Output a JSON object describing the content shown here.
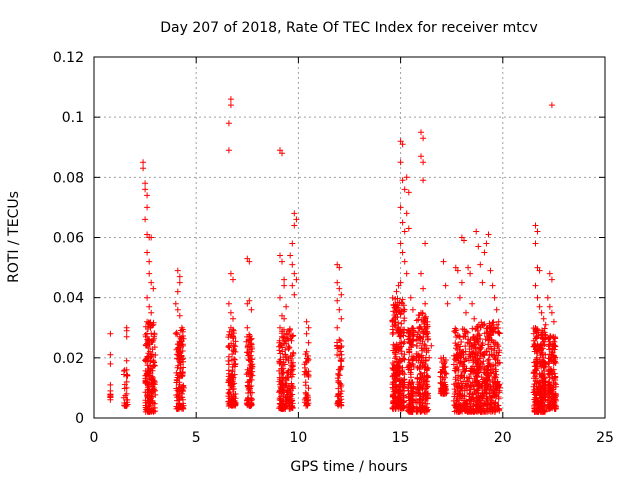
{
  "chart_data": {
    "type": "scatter",
    "title": "Day 207 of 2018, Rate Of TEC Index for receiver mtcv",
    "xlabel": "GPS time / hours",
    "ylabel": "ROTI / TECUs",
    "xlim": [
      0,
      25
    ],
    "ylim": [
      0,
      0.12
    ],
    "xticks": [
      "0",
      "5",
      "10",
      "15",
      "20",
      "25"
    ],
    "yticks": [
      "0",
      "0.02",
      "0.04",
      "0.06",
      "0.08",
      "0.1",
      "0.12"
    ],
    "grid": true,
    "marker": "+",
    "color": "#ff0000",
    "series": [
      {
        "points": [
          [
            0.8,
            0.028
          ],
          [
            0.8,
            0.021
          ],
          [
            0.8,
            0.018
          ],
          [
            0.8,
            0.011
          ],
          [
            0.8,
            0.009
          ],
          [
            0.8,
            0.007
          ],
          [
            1.6,
            0.03
          ],
          [
            1.6,
            0.029
          ],
          [
            1.6,
            0.027
          ],
          [
            1.6,
            0.019
          ],
          [
            1.6,
            0.016
          ],
          [
            1.6,
            0.014
          ],
          [
            1.6,
            0.012
          ],
          [
            1.6,
            0.01
          ],
          [
            1.6,
            0.008
          ],
          [
            1.6,
            0.006
          ],
          [
            1.6,
            0.004
          ],
          [
            2.4,
            0.085
          ],
          [
            2.4,
            0.083
          ],
          [
            2.5,
            0.078
          ],
          [
            2.5,
            0.076
          ],
          [
            2.6,
            0.074
          ],
          [
            2.6,
            0.07
          ],
          [
            2.5,
            0.066
          ],
          [
            2.6,
            0.061
          ],
          [
            2.7,
            0.06
          ],
          [
            2.8,
            0.06
          ],
          [
            2.6,
            0.055
          ],
          [
            2.7,
            0.052
          ],
          [
            2.7,
            0.048
          ],
          [
            2.8,
            0.045
          ],
          [
            2.9,
            0.043
          ],
          [
            2.6,
            0.04
          ],
          [
            2.7,
            0.037
          ],
          [
            2.8,
            0.035
          ],
          [
            2.6,
            0.032
          ],
          [
            2.9,
            0.031
          ],
          [
            2.8,
            0.028
          ],
          [
            2.7,
            0.026
          ],
          [
            2.6,
            0.024
          ],
          [
            4.1,
            0.049
          ],
          [
            4.2,
            0.047
          ],
          [
            4.2,
            0.045
          ],
          [
            4.1,
            0.042
          ],
          [
            4.0,
            0.038
          ],
          [
            4.1,
            0.036
          ],
          [
            4.2,
            0.034
          ],
          [
            4.3,
            0.03
          ],
          [
            4.0,
            0.028
          ],
          [
            4.2,
            0.025
          ],
          [
            4.4,
            0.01
          ],
          [
            6.7,
            0.106
          ],
          [
            6.7,
            0.104
          ],
          [
            6.6,
            0.098
          ],
          [
            6.6,
            0.089
          ],
          [
            6.7,
            0.048
          ],
          [
            6.8,
            0.046
          ],
          [
            6.6,
            0.038
          ],
          [
            6.7,
            0.035
          ],
          [
            6.8,
            0.033
          ],
          [
            6.7,
            0.03
          ],
          [
            6.8,
            0.027
          ],
          [
            6.6,
            0.024
          ],
          [
            7.5,
            0.053
          ],
          [
            7.6,
            0.052
          ],
          [
            7.6,
            0.039
          ],
          [
            7.5,
            0.038
          ],
          [
            7.7,
            0.036
          ],
          [
            7.5,
            0.03
          ],
          [
            7.6,
            0.026
          ],
          [
            7.7,
            0.022
          ],
          [
            9.1,
            0.089
          ],
          [
            9.2,
            0.088
          ],
          [
            9.1,
            0.054
          ],
          [
            9.2,
            0.052
          ],
          [
            9.3,
            0.046
          ],
          [
            9.3,
            0.044
          ],
          [
            9.1,
            0.04
          ],
          [
            9.4,
            0.037
          ],
          [
            9.2,
            0.034
          ],
          [
            9.3,
            0.033
          ],
          [
            9.1,
            0.03
          ],
          [
            9.2,
            0.027
          ],
          [
            9.5,
            0.026
          ],
          [
            9.8,
            0.068
          ],
          [
            9.9,
            0.066
          ],
          [
            9.8,
            0.064
          ],
          [
            9.7,
            0.058
          ],
          [
            9.6,
            0.054
          ],
          [
            9.7,
            0.051
          ],
          [
            9.8,
            0.048
          ],
          [
            9.9,
            0.046
          ],
          [
            9.7,
            0.044
          ],
          [
            9.8,
            0.041
          ],
          [
            10.4,
            0.032
          ],
          [
            10.5,
            0.03
          ],
          [
            10.4,
            0.028
          ],
          [
            10.5,
            0.025
          ],
          [
            10.4,
            0.022
          ],
          [
            11.9,
            0.051
          ],
          [
            12.0,
            0.05
          ],
          [
            11.9,
            0.045
          ],
          [
            12.0,
            0.043
          ],
          [
            12.1,
            0.041
          ],
          [
            11.9,
            0.039
          ],
          [
            12.0,
            0.036
          ],
          [
            12.1,
            0.033
          ],
          [
            11.9,
            0.03
          ],
          [
            12.0,
            0.026
          ],
          [
            14.6,
            0.032
          ],
          [
            14.7,
            0.031
          ],
          [
            14.8,
            0.042
          ],
          [
            14.9,
            0.044
          ],
          [
            15.0,
            0.092
          ],
          [
            15.1,
            0.091
          ],
          [
            15.0,
            0.085
          ],
          [
            15.1,
            0.079
          ],
          [
            15.2,
            0.076
          ],
          [
            15.0,
            0.07
          ],
          [
            15.1,
            0.065
          ],
          [
            15.2,
            0.062
          ],
          [
            15.0,
            0.058
          ],
          [
            15.1,
            0.055
          ],
          [
            15.2,
            0.052
          ],
          [
            15.3,
            0.048
          ],
          [
            15.0,
            0.045
          ],
          [
            15.3,
            0.08
          ],
          [
            15.4,
            0.075
          ],
          [
            15.3,
            0.068
          ],
          [
            15.4,
            0.063
          ],
          [
            15.5,
            0.04
          ],
          [
            15.6,
            0.036
          ],
          [
            16.0,
            0.095
          ],
          [
            16.1,
            0.093
          ],
          [
            16.0,
            0.087
          ],
          [
            16.1,
            0.085
          ],
          [
            16.1,
            0.079
          ],
          [
            16.2,
            0.058
          ],
          [
            16.0,
            0.048
          ],
          [
            16.1,
            0.043
          ],
          [
            16.2,
            0.038
          ],
          [
            16.0,
            0.035
          ],
          [
            16.3,
            0.031
          ],
          [
            16.5,
            0.024
          ],
          [
            16.4,
            0.02
          ],
          [
            17.1,
            0.052
          ],
          [
            17.2,
            0.044
          ],
          [
            17.3,
            0.038
          ],
          [
            17.1,
            0.02
          ],
          [
            17.2,
            0.017
          ],
          [
            17.7,
            0.05
          ],
          [
            17.8,
            0.049
          ],
          [
            18.0,
            0.06
          ],
          [
            18.1,
            0.059
          ],
          [
            18.0,
            0.045
          ],
          [
            17.9,
            0.04
          ],
          [
            18.2,
            0.035
          ],
          [
            18.3,
            0.05
          ],
          [
            18.4,
            0.048
          ],
          [
            18.5,
            0.038
          ],
          [
            18.6,
            0.033
          ],
          [
            18.7,
            0.062
          ],
          [
            18.8,
            0.057
          ],
          [
            18.9,
            0.051
          ],
          [
            19.0,
            0.045
          ],
          [
            19.1,
            0.055
          ],
          [
            19.2,
            0.058
          ],
          [
            19.3,
            0.061
          ],
          [
            19.4,
            0.049
          ],
          [
            19.5,
            0.044
          ],
          [
            19.6,
            0.04
          ],
          [
            19.7,
            0.036
          ],
          [
            19.8,
            0.032
          ],
          [
            21.6,
            0.064
          ],
          [
            21.7,
            0.062
          ],
          [
            21.6,
            0.058
          ],
          [
            21.7,
            0.05
          ],
          [
            21.8,
            0.049
          ],
          [
            21.6,
            0.044
          ],
          [
            21.7,
            0.04
          ],
          [
            21.8,
            0.037
          ],
          [
            21.9,
            0.035
          ],
          [
            22.0,
            0.033
          ],
          [
            22.1,
            0.031
          ],
          [
            22.3,
            0.048
          ],
          [
            22.4,
            0.046
          ],
          [
            22.2,
            0.04
          ],
          [
            22.3,
            0.037
          ],
          [
            22.4,
            0.035
          ],
          [
            22.5,
            0.032
          ],
          [
            22.4,
            0.104
          ]
        ],
        "dense_bands": [
          [
            0.8,
            0.0,
            0.006,
            0.012,
            6
          ],
          [
            1.55,
            0.1,
            0.004,
            0.016,
            18
          ],
          [
            2.75,
            0.25,
            0.002,
            0.032,
            180
          ],
          [
            4.2,
            0.18,
            0.003,
            0.03,
            120
          ],
          [
            6.75,
            0.18,
            0.004,
            0.03,
            110
          ],
          [
            7.6,
            0.15,
            0.004,
            0.028,
            100
          ],
          [
            9.4,
            0.35,
            0.003,
            0.03,
            200
          ],
          [
            10.4,
            0.1,
            0.004,
            0.022,
            40
          ],
          [
            12.0,
            0.12,
            0.004,
            0.026,
            60
          ],
          [
            14.9,
            0.3,
            0.003,
            0.04,
            260
          ],
          [
            15.5,
            0.15,
            0.002,
            0.03,
            120
          ],
          [
            16.05,
            0.3,
            0.002,
            0.035,
            200
          ],
          [
            17.1,
            0.15,
            0.008,
            0.02,
            60
          ],
          [
            18.2,
            0.6,
            0.002,
            0.03,
            320
          ],
          [
            19.3,
            0.55,
            0.002,
            0.032,
            320
          ],
          [
            21.8,
            0.3,
            0.002,
            0.03,
            260
          ],
          [
            22.4,
            0.2,
            0.003,
            0.028,
            160
          ]
        ]
      }
    ]
  }
}
